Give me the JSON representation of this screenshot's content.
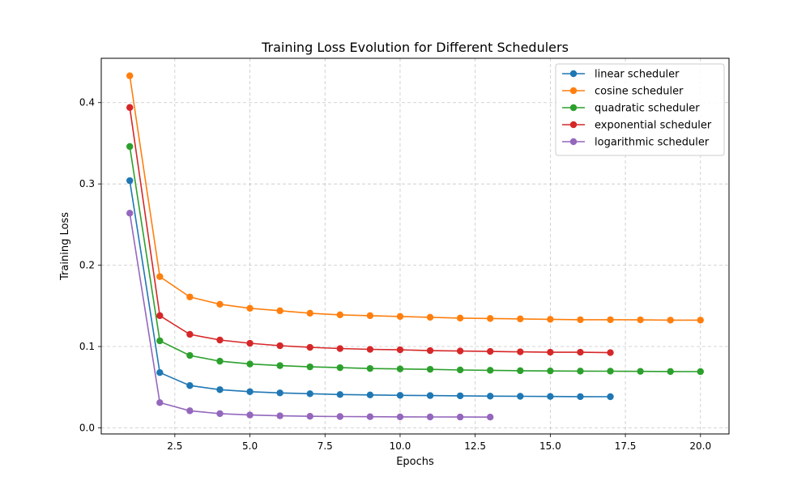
{
  "chart_data": {
    "type": "line",
    "title": "Training Loss Evolution for Different Schedulers",
    "xlabel": "Epochs",
    "ylabel": "Training Loss",
    "xlim": [
      0.05,
      20.95
    ],
    "ylim": [
      -0.0075,
      0.4545
    ],
    "xticks": [
      2.5,
      5.0,
      7.5,
      10.0,
      12.5,
      15.0,
      17.5,
      20.0
    ],
    "xtick_labels": [
      "2.5",
      "5.0",
      "7.5",
      "10.0",
      "12.5",
      "15.0",
      "17.5",
      "20.0"
    ],
    "yticks": [
      0.0,
      0.1,
      0.2,
      0.3,
      0.4
    ],
    "ytick_labels": [
      "0.0",
      "0.1",
      "0.2",
      "0.3",
      "0.4"
    ],
    "grid": true,
    "legend_position": "top-right",
    "series": [
      {
        "name": "linear scheduler",
        "color": "#1f77b4",
        "x": [
          1,
          2,
          3,
          4,
          5,
          6,
          7,
          8,
          9,
          10,
          11,
          12,
          13,
          14,
          15,
          16,
          17
        ],
        "values": [
          0.304,
          0.068,
          0.052,
          0.047,
          0.0445,
          0.043,
          0.042,
          0.041,
          0.0405,
          0.04,
          0.0397,
          0.0394,
          0.039,
          0.0388,
          0.0386,
          0.0384,
          0.0383
        ]
      },
      {
        "name": "cosine scheduler",
        "color": "#ff7f0e",
        "x": [
          1,
          2,
          3,
          4,
          5,
          6,
          7,
          8,
          9,
          10,
          11,
          12,
          13,
          14,
          15,
          16,
          17,
          18,
          19,
          20
        ],
        "values": [
          0.433,
          0.186,
          0.161,
          0.152,
          0.147,
          0.144,
          0.141,
          0.139,
          0.138,
          0.137,
          0.136,
          0.135,
          0.1345,
          0.134,
          0.1335,
          0.133,
          0.133,
          0.1328,
          0.1325,
          0.1325
        ]
      },
      {
        "name": "quadratic scheduler",
        "color": "#2ca02c",
        "x": [
          1,
          2,
          3,
          4,
          5,
          6,
          7,
          8,
          9,
          10,
          11,
          12,
          13,
          14,
          15,
          16,
          17,
          18,
          19,
          20
        ],
        "values": [
          0.346,
          0.107,
          0.089,
          0.082,
          0.0785,
          0.0765,
          0.075,
          0.074,
          0.073,
          0.0725,
          0.072,
          0.0712,
          0.0708,
          0.0703,
          0.07,
          0.0698,
          0.0697,
          0.0695,
          0.0693,
          0.0692
        ]
      },
      {
        "name": "exponential scheduler",
        "color": "#d62728",
        "x": [
          1,
          2,
          3,
          4,
          5,
          6,
          7,
          8,
          9,
          10,
          11,
          12,
          13,
          14,
          15,
          16,
          17
        ],
        "values": [
          0.394,
          0.138,
          0.115,
          0.108,
          0.104,
          0.101,
          0.099,
          0.0975,
          0.0965,
          0.096,
          0.095,
          0.0945,
          0.094,
          0.0935,
          0.093,
          0.093,
          0.0925
        ]
      },
      {
        "name": "logarithmic scheduler",
        "color": "#9467bd",
        "x": [
          1,
          2,
          3,
          4,
          5,
          6,
          7,
          8,
          9,
          10,
          11,
          12,
          13
        ],
        "values": [
          0.264,
          0.031,
          0.021,
          0.0175,
          0.0158,
          0.0148,
          0.0142,
          0.0139,
          0.0137,
          0.0135,
          0.0134,
          0.0133,
          0.0132
        ]
      }
    ]
  }
}
